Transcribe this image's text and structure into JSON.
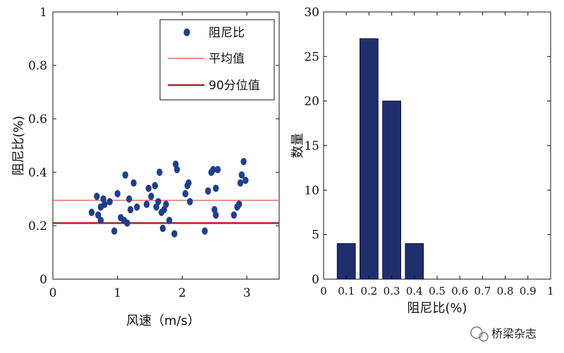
{
  "colors": {
    "scatter": "#1f3f8f",
    "mean_line": "#d9735f",
    "p90_line": "#a0282a",
    "bar_fill": "#1f2f6b",
    "axis": "#111111"
  },
  "watermark": "桥梁杂志",
  "chart_data": [
    {
      "type": "scatter",
      "xlabel": "风速（m/s）",
      "ylabel": "阻尼比(%)",
      "xlim": [
        0,
        3.5
      ],
      "ylim": [
        0,
        1
      ],
      "xticks": [
        0,
        1,
        2,
        3
      ],
      "yticks": [
        0,
        0.2,
        0.4,
        0.6,
        0.8,
        1
      ],
      "ytick_labels": [
        "0",
        "0.2",
        "0.4",
        "0.6",
        "0.8",
        "1"
      ],
      "legend_position": "top-right",
      "legend": [
        "阻尼比",
        "平均值",
        "90分位值"
      ],
      "hlines": [
        {
          "name": "平均值",
          "y": 0.295
        },
        {
          "name": "90分位值",
          "y": 0.21
        }
      ],
      "series": [
        {
          "name": "阻尼比",
          "points": [
            [
              0.6,
              0.25
            ],
            [
              0.68,
              0.31
            ],
            [
              0.7,
              0.24
            ],
            [
              0.74,
              0.27
            ],
            [
              0.74,
              0.22
            ],
            [
              0.78,
              0.3
            ],
            [
              0.8,
              0.28
            ],
            [
              0.88,
              0.29
            ],
            [
              0.95,
              0.18
            ],
            [
              1.0,
              0.32
            ],
            [
              1.05,
              0.23
            ],
            [
              1.1,
              0.22
            ],
            [
              1.12,
              0.39
            ],
            [
              1.15,
              0.21
            ],
            [
              1.18,
              0.3
            ],
            [
              1.2,
              0.26
            ],
            [
              1.25,
              0.36
            ],
            [
              1.3,
              0.27
            ],
            [
              1.45,
              0.28
            ],
            [
              1.48,
              0.34
            ],
            [
              1.52,
              0.31
            ],
            [
              1.58,
              0.35
            ],
            [
              1.6,
              0.27
            ],
            [
              1.63,
              0.29
            ],
            [
              1.65,
              0.4
            ],
            [
              1.68,
              0.25
            ],
            [
              1.7,
              0.19
            ],
            [
              1.72,
              0.26
            ],
            [
              1.75,
              0.28
            ],
            [
              1.8,
              0.22
            ],
            [
              1.88,
              0.17
            ],
            [
              1.9,
              0.43
            ],
            [
              1.92,
              0.41
            ],
            [
              2.05,
              0.32
            ],
            [
              2.08,
              0.35
            ],
            [
              2.1,
              0.36
            ],
            [
              2.12,
              0.29
            ],
            [
              2.35,
              0.18
            ],
            [
              2.4,
              0.33
            ],
            [
              2.45,
              0.4
            ],
            [
              2.48,
              0.41
            ],
            [
              2.5,
              0.26
            ],
            [
              2.52,
              0.24
            ],
            [
              2.52,
              0.34
            ],
            [
              2.55,
              0.41
            ],
            [
              2.8,
              0.24
            ],
            [
              2.85,
              0.27
            ],
            [
              2.88,
              0.28
            ],
            [
              2.9,
              0.36
            ],
            [
              2.92,
              0.39
            ],
            [
              2.98,
              0.37
            ],
            [
              2.95,
              0.44
            ]
          ]
        }
      ]
    },
    {
      "type": "bar",
      "xlabel": "阻尼比(%)",
      "ylabel": "数量",
      "xlim": [
        0,
        1
      ],
      "ylim": [
        0,
        30
      ],
      "xticks": [
        0,
        0.1,
        0.2,
        0.3,
        0.4,
        0.5,
        0.6,
        0.7,
        0.8,
        0.9,
        1
      ],
      "xtick_labels": [
        "0",
        "0.1",
        "0.2",
        "0.3",
        "0.4",
        "0.5",
        "0.6",
        "0.7",
        "0.8",
        "0.9",
        "1"
      ],
      "yticks": [
        0,
        5,
        10,
        15,
        20,
        25,
        30
      ],
      "bar_width": 0.08,
      "categories": [
        0.1,
        0.2,
        0.3,
        0.4
      ],
      "values": [
        4,
        27,
        20,
        4
      ]
    }
  ]
}
